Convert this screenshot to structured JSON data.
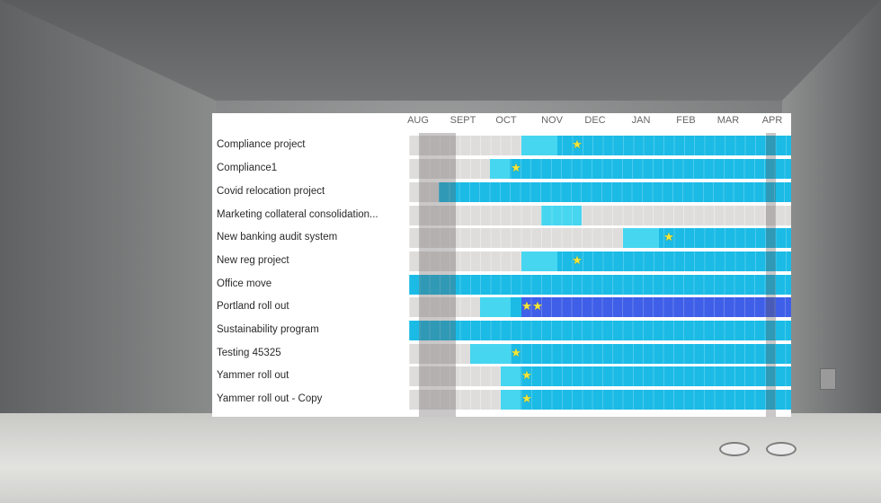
{
  "months": [
    "AUG",
    "SEPT",
    "OCT",
    "NOV",
    "DEC",
    "JAN",
    "FEB",
    "MAR",
    "APR"
  ],
  "projects": [
    {
      "label": "Compliance project",
      "stars": 1
    },
    {
      "label": "Compliance1",
      "stars": 1
    },
    {
      "label": "Covid relocation project",
      "stars": 0
    },
    {
      "label": "Marketing collateral consolidation...",
      "stars": 0
    },
    {
      "label": "New banking audit system",
      "stars": 1
    },
    {
      "label": "New reg project",
      "stars": 1
    },
    {
      "label": "Office move",
      "stars": 0
    },
    {
      "label": "Portland roll out",
      "stars": 2
    },
    {
      "label": "Sustainability program",
      "stars": 0
    },
    {
      "label": "Testing 45325",
      "stars": 1
    },
    {
      "label": "Yammer roll out",
      "stars": 1
    },
    {
      "label": "Yammer roll out - Copy",
      "stars": 1
    }
  ],
  "colors": {
    "light_blue": "#46d6f0",
    "mid_blue": "#1bbbe6",
    "dark_blue": "#3f5fe8",
    "track_grey": "#dedddc"
  },
  "icons": {
    "milestone": "star-icon"
  }
}
